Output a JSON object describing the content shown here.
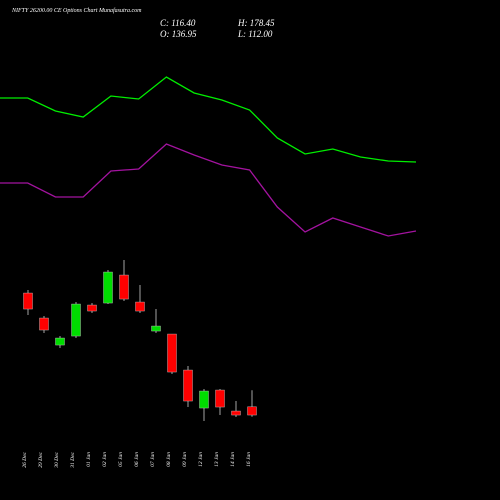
{
  "chart_data": [
    {
      "type": "line",
      "categories": [
        null,
        null,
        null,
        null,
        null,
        null,
        null,
        null,
        null,
        null,
        null,
        null,
        null,
        null,
        null,
        null
      ],
      "ylim": [
        0,
        250
      ],
      "series": [
        {
          "color": "#00ee00",
          "values": [
            192,
            192,
            179,
            173,
            194,
            191,
            213,
            197,
            190,
            180,
            152,
            136,
            141,
            133,
            129,
            128
          ]
        },
        {
          "color": "#a3139f",
          "values": [
            107,
            107,
            93,
            93,
            119,
            121,
            146,
            135,
            125,
            120,
            83,
            58,
            72,
            63,
            54,
            59
          ]
        }
      ]
    },
    {
      "type": "candlestick",
      "title": "NIFTY 26200.00 CE Options Chart Munafasutra.com",
      "annotations": [
        "C: 116.40",
        "O: 136.95",
        "H: 178.45",
        "L: 112.00"
      ],
      "categories": [
        "26 Dec",
        "29 Dec",
        "30 Dec",
        "31 Dec",
        "01 Jan",
        "02 Jan",
        "05 Jan",
        "06 Jan",
        "07 Jan",
        "08 Jan",
        "09 Jan",
        "12 Jan",
        "13 Jan",
        "14 Jan",
        "16 Jan"
      ],
      "open": [
        421.4,
        358.9,
        291.4,
        313.9,
        391.4,
        396.4,
        466.4,
        398.9,
        326.4,
        318.9,
        228.9,
        133.9,
        178.9,
        126.4,
        136.95
      ],
      "close": [
        381.4,
        328.9,
        308.9,
        393.9,
        376.4,
        473.9,
        406.4,
        376.4,
        338.9,
        223.9,
        151.4,
        176.4,
        136.4,
        116.4,
        116.4
      ],
      "high": [
        428.9,
        363.9,
        313.9,
        398.9,
        396.4,
        478.9,
        503.9,
        441.4,
        381.4,
        318.9,
        238.9,
        181.4,
        181.4,
        151.4,
        178.45
      ],
      "low": [
        366.4,
        321.4,
        283.9,
        308.9,
        371.4,
        393.9,
        401.4,
        371.4,
        321.4,
        218.9,
        136.4,
        101.4,
        116.4,
        111.4,
        112.0
      ],
      "up_color": "#00dd00",
      "down_color": "#ff0000",
      "wick_color": "#cccccc",
      "ylim": [
        90,
        530
      ]
    }
  ]
}
